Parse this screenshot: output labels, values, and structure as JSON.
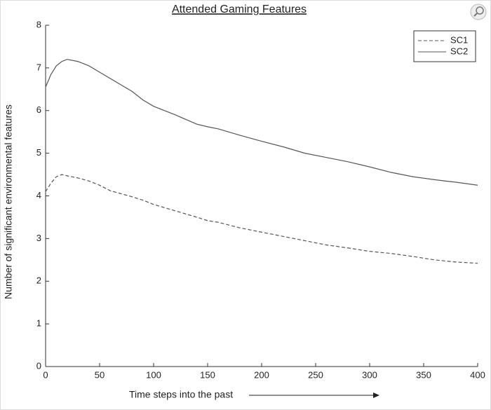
{
  "chart_data": {
    "type": "line",
    "title": "Attended Gaming Features",
    "x_label": "Time steps into the past",
    "y_label": "Number of significant environmental features",
    "x": [
      0,
      5,
      10,
      15,
      20,
      30,
      40,
      50,
      60,
      70,
      80,
      90,
      100,
      120,
      140,
      150,
      160,
      180,
      200,
      220,
      240,
      260,
      280,
      300,
      320,
      340,
      360,
      380,
      400
    ],
    "series": [
      {
        "name": "SC1",
        "color": "#555555",
        "line_style": "dashed",
        "values": [
          4.1,
          4.3,
          4.45,
          4.5,
          4.47,
          4.42,
          4.35,
          4.25,
          4.12,
          4.05,
          3.98,
          3.9,
          3.8,
          3.65,
          3.5,
          3.42,
          3.38,
          3.25,
          3.15,
          3.05,
          2.95,
          2.85,
          2.78,
          2.7,
          2.65,
          2.58,
          2.5,
          2.45,
          2.42
        ]
      },
      {
        "name": "SC2",
        "color": "#555555",
        "line_style": "solid",
        "values": [
          6.55,
          6.85,
          7.05,
          7.15,
          7.2,
          7.15,
          7.05,
          6.9,
          6.75,
          6.6,
          6.45,
          6.25,
          6.1,
          5.9,
          5.68,
          5.62,
          5.57,
          5.42,
          5.28,
          5.15,
          5.0,
          4.9,
          4.8,
          4.68,
          4.55,
          4.45,
          4.38,
          4.32,
          4.25
        ]
      }
    ],
    "xlim": [
      0,
      400
    ],
    "xticks": [
      0,
      50,
      100,
      150,
      200,
      250,
      300,
      350,
      400
    ],
    "ylim": [
      0,
      8
    ],
    "yticks": [
      0,
      1,
      2,
      3,
      4,
      5,
      6,
      7,
      8
    ],
    "legend": "upper right"
  }
}
